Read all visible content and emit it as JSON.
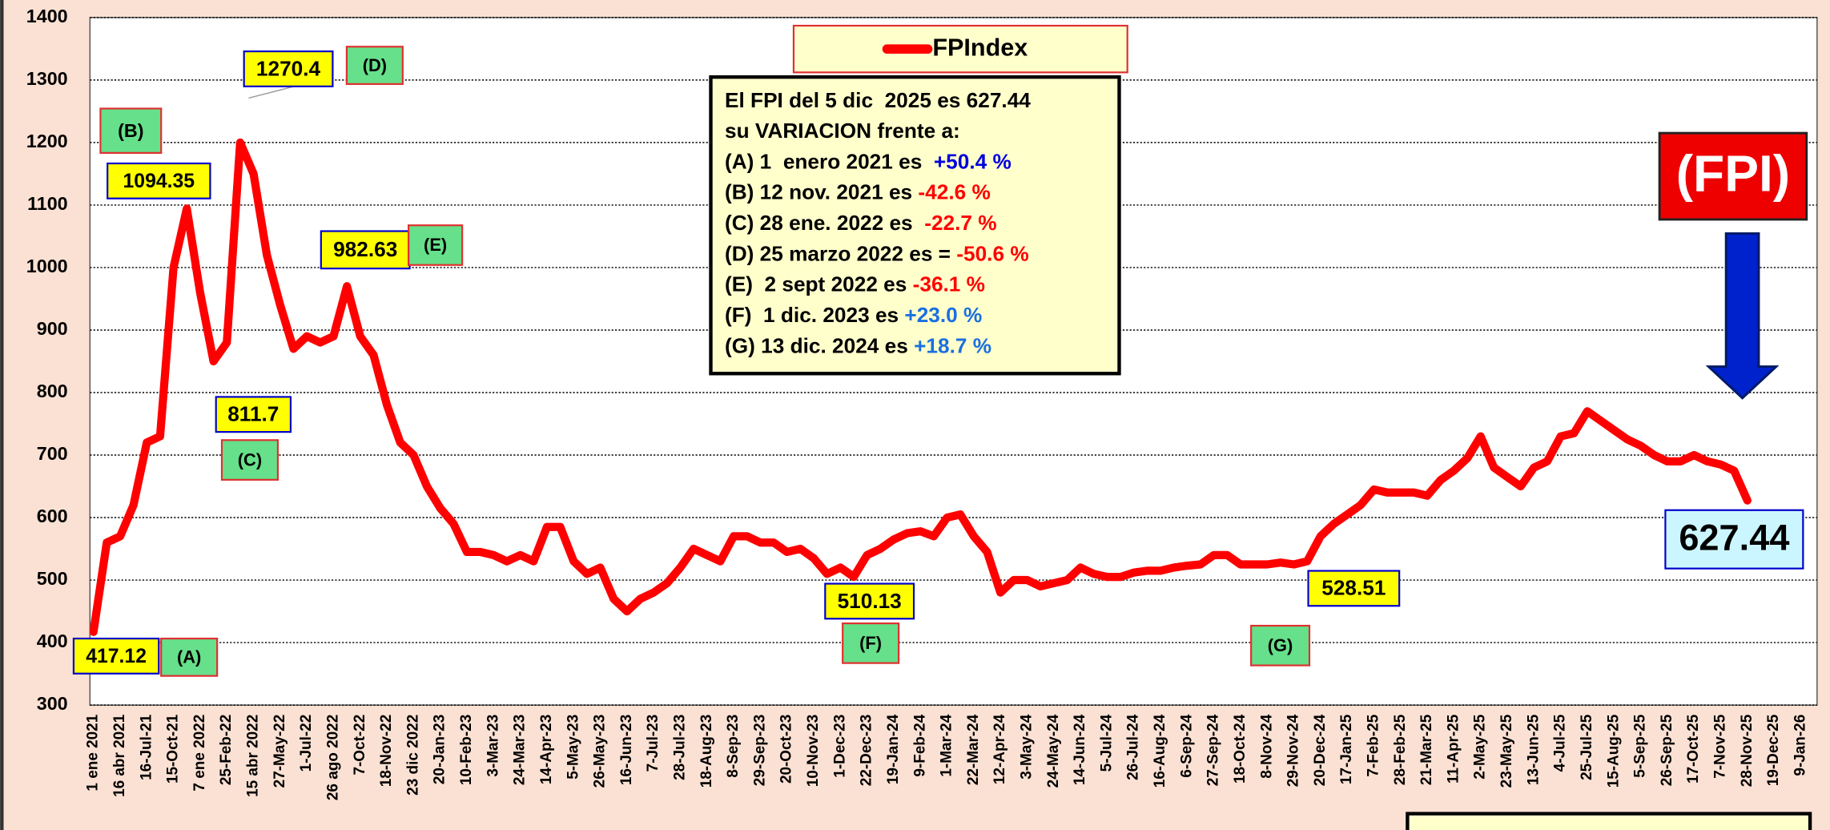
{
  "chart_data": {
    "type": "line",
    "categories": [
      "1 ene 2021",
      null,
      "16 abr 2021",
      null,
      "16-Jul-21",
      null,
      "15-Oct-21",
      null,
      "7 ene 2022",
      null,
      "25-Feb-22",
      null,
      "15 abr 2022",
      null,
      "27-May-22",
      null,
      "1-Jul-22",
      null,
      "26 ago 2022",
      null,
      "7-Oct-22",
      null,
      "18-Nov-22",
      null,
      "23 dic 2022",
      null,
      "20-Jan-23",
      null,
      "10-Feb-23",
      null,
      "3-Mar-23",
      null,
      "24-Mar-23",
      null,
      "14-Apr-23",
      null,
      "5-May-23",
      null,
      "26-May-23",
      null,
      "16-Jun-23",
      null,
      "7-Jul-23",
      null,
      "28-Jul-23",
      null,
      "18-Aug-23",
      null,
      "8-Sep-23",
      null,
      "29-Sep-23",
      null,
      "20-Oct-23",
      null,
      "10-Nov-23",
      null,
      "1-Dec-23",
      null,
      "22-Dec-23",
      null,
      "19-Jan-24",
      null,
      "9-Feb-24",
      null,
      "1-Mar-24",
      null,
      "22-Mar-24",
      null,
      "12-Apr-24",
      null,
      "3-May-24",
      null,
      "24-May-24",
      null,
      "14-Jun-24",
      null,
      "5-Jul-24",
      null,
      "26-Jul-24",
      null,
      "16-Aug-24",
      null,
      "6-Sep-24",
      null,
      "27-Sep-24",
      null,
      "18-Oct-24",
      null,
      "8-Nov-24",
      null,
      "29-Nov-24",
      null,
      "20-Dec-24",
      null,
      "17-Jan-25",
      null,
      "7-Feb-25",
      null,
      "28-Feb-25",
      null,
      "21-Mar-25",
      null,
      "11-Apr-25",
      null,
      "2-May-25",
      null,
      "23-May-25",
      null,
      "13-Jun-25",
      null,
      "4-Jul-25",
      null,
      "25-Jul-25",
      null,
      "15-Aug-25",
      null,
      "5-Sep-25",
      null,
      "26-Sep-25",
      null,
      "17-Oct-25",
      null,
      "7-Nov-25",
      null,
      "28-Nov-25",
      null,
      "19-Dec-25",
      null,
      "9-Jan-26"
    ],
    "series": [
      {
        "name": "FPIndex",
        "color": "#ff0000",
        "values": [
          417.12,
          560,
          570,
          620,
          720,
          730,
          1000,
          1094.35,
          960,
          850,
          880,
          1200,
          1150,
          1020,
          940,
          870,
          890,
          880,
          890,
          970,
          890,
          860,
          780,
          720,
          700,
          650,
          615,
          590,
          545,
          545,
          540,
          530,
          540,
          530,
          585,
          585,
          530,
          510,
          520,
          470,
          450,
          470,
          480,
          495,
          520,
          550,
          540,
          530,
          570,
          570,
          560,
          560,
          545,
          550,
          535,
          510,
          520,
          505,
          540,
          550,
          565,
          575,
          578,
          570,
          600,
          605,
          570,
          545,
          480,
          500,
          500,
          490,
          495,
          500,
          520,
          510,
          505,
          505,
          512,
          515,
          515,
          520,
          523,
          525,
          540,
          540,
          525,
          525,
          525,
          528,
          525,
          530,
          570,
          590,
          605,
          620,
          645,
          640,
          640,
          640,
          635,
          660,
          675,
          695,
          730,
          680,
          665,
          650,
          680,
          690,
          730,
          735,
          770,
          755,
          740,
          725,
          715,
          700,
          690,
          690,
          700,
          690,
          685,
          675,
          627.44,
          null,
          null,
          null,
          null
        ]
      }
    ],
    "ylim": [
      300,
      1400
    ],
    "yticks": [
      300,
      400,
      500,
      600,
      700,
      800,
      900,
      1000,
      1100,
      1200,
      1300,
      1400
    ],
    "grid": true,
    "legend": "top",
    "annotations": [
      {
        "text": "417.12",
        "fill": "#ffff00",
        "border": "#0000cc"
      },
      {
        "text": "(A)",
        "fill": "#66e08a",
        "border": "#e03030"
      },
      {
        "text": "(B)",
        "fill": "#66e08a",
        "border": "#e03030"
      },
      {
        "text": "1094.35",
        "fill": "#ffff00",
        "border": "#0000cc"
      },
      {
        "text": "1270.4",
        "fill": "#ffff00",
        "border": "#0000cc"
      },
      {
        "text": "(D)",
        "fill": "#66e08a",
        "border": "#e03030"
      },
      {
        "text": "982.63",
        "fill": "#ffff00",
        "border": "#0000cc"
      },
      {
        "text": "(E)",
        "fill": "#66e08a",
        "border": "#e03030"
      },
      {
        "text": "811.7",
        "fill": "#ffff00",
        "border": "#0000cc"
      },
      {
        "text": "(C)",
        "fill": "#66e08a",
        "border": "#e03030"
      },
      {
        "text": "510.13",
        "fill": "#ffff00",
        "border": "#0000cc"
      },
      {
        "text": "(F)",
        "fill": "#66e08a",
        "border": "#e03030"
      },
      {
        "text": "528.51",
        "fill": "#ffff00",
        "border": "#0000cc"
      },
      {
        "text": "(G)",
        "fill": "#66e08a",
        "border": "#e03030"
      },
      {
        "text": "627.44",
        "fill": "#ccf6ff",
        "border": "#0000cc"
      }
    ],
    "badge": "(FPI)",
    "info_box": {
      "lines": [
        {
          "text": "El FPI del 5 dic  2025 es 627.44"
        },
        {
          "text": "su VARIACION frente a:"
        },
        {
          "text": "(A) 1  enero 2021 es  ",
          "change": "+50.4 %",
          "color": "#0000dd"
        },
        {
          "text": "(B) 12 nov. 2021 es ",
          "change": "-42.6 %",
          "color": "#ff0000"
        },
        {
          "text": "(C) 28 ene. 2022 es  ",
          "change": "-22.7 %",
          "color": "#ff0000"
        },
        {
          "text": "(D) 25 marzo 2022 es = ",
          "change": "-50.6 %",
          "color": "#ff0000"
        },
        {
          "text": "(E)  2 sept 2022 es ",
          "change": "-36.1 %",
          "color": "#ff0000"
        },
        {
          "text": "(F)  1 dic. 2023 es ",
          "change": "+23.0 %",
          "color": "#1a6fe0"
        },
        {
          "text": "(G) 13 dic. 2024 es ",
          "change": "+18.7 %",
          "color": "#1a6fe0"
        }
      ]
    }
  }
}
